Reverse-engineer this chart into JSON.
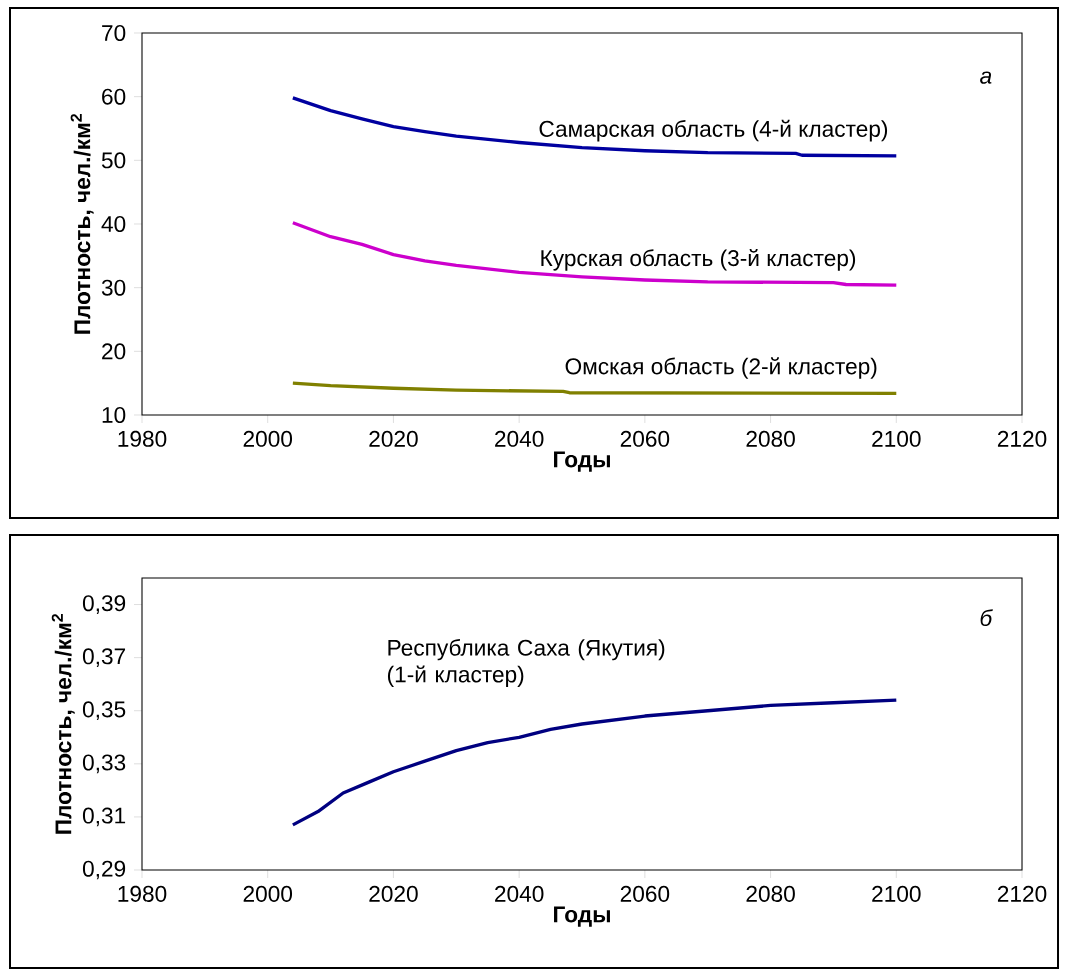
{
  "chart_data": [
    {
      "type": "line",
      "xlabel": "Годы",
      "ylabel": "Плотность, чел./км$^{2}$",
      "annotations": [
        "а"
      ],
      "xlim": [
        1980,
        2120
      ],
      "xticks": [
        1980,
        2000,
        2020,
        2040,
        2060,
        2080,
        2100,
        2120
      ],
      "ylim": [
        10,
        70
      ],
      "yticks": [
        10,
        20,
        30,
        40,
        50,
        60,
        70
      ],
      "grid": false,
      "marker": "none",
      "line_style": "solid",
      "series": [
        {
          "name": "Самарская область (4-й кластер)",
          "color": "#0000a0",
          "x": [
            2004,
            2010,
            2015,
            2020,
            2025,
            2030,
            2040,
            2050,
            2060,
            2070,
            2084,
            2085,
            2100
          ],
          "values": [
            59.8,
            57.8,
            56.5,
            55.3,
            54.5,
            53.8,
            52.8,
            52.0,
            51.5,
            51.2,
            51.1,
            50.8,
            50.7
          ]
        },
        {
          "name": "Курская область (3-й кластер)",
          "color": "#cc00cc",
          "x": [
            2004,
            2010,
            2015,
            2020,
            2025,
            2030,
            2040,
            2050,
            2060,
            2070,
            2090,
            2092,
            2100
          ],
          "values": [
            40.2,
            38.0,
            36.8,
            35.2,
            34.2,
            33.5,
            32.4,
            31.7,
            31.2,
            30.9,
            30.8,
            30.5,
            30.4
          ]
        },
        {
          "name": "Омская область (2-й кластер)",
          "color": "#808000",
          "x": [
            2004,
            2010,
            2020,
            2030,
            2047,
            2048,
            2100
          ],
          "values": [
            15.0,
            14.6,
            14.2,
            13.9,
            13.7,
            13.5,
            13.4
          ]
        }
      ]
    },
    {
      "type": "line",
      "xlabel": "Годы",
      "ylabel": "Плотность, чел./км$^{2}$",
      "annotations": [
        "б"
      ],
      "xlim": [
        1980,
        2120
      ],
      "xticks": [
        1980,
        2000,
        2020,
        2040,
        2060,
        2080,
        2100,
        2120
      ],
      "ylim": [
        0.29,
        0.4
      ],
      "yticks": [
        {
          "value": 0.29,
          "label": "0,29"
        },
        {
          "value": 0.31,
          "label": "0,31"
        },
        {
          "value": 0.33,
          "label": "0,33"
        },
        {
          "value": 0.35,
          "label": "0,35"
        },
        {
          "value": 0.37,
          "label": "0,37"
        },
        {
          "value": 0.39,
          "label": "0,39"
        }
      ],
      "grid": false,
      "marker": "none",
      "line_style": "solid",
      "series": [
        {
          "name": "Республика Саха (Якутия) (1-й кластер)",
          "color": "#000080",
          "x": [
            2004,
            2008,
            2012,
            2016,
            2020,
            2025,
            2030,
            2035,
            2040,
            2045,
            2050,
            2060,
            2070,
            2080,
            2090,
            2100
          ],
          "values": [
            0.307,
            0.312,
            0.319,
            0.323,
            0.327,
            0.331,
            0.335,
            0.338,
            0.34,
            0.343,
            0.345,
            0.348,
            0.35,
            0.352,
            0.353,
            0.354
          ]
        }
      ]
    }
  ]
}
